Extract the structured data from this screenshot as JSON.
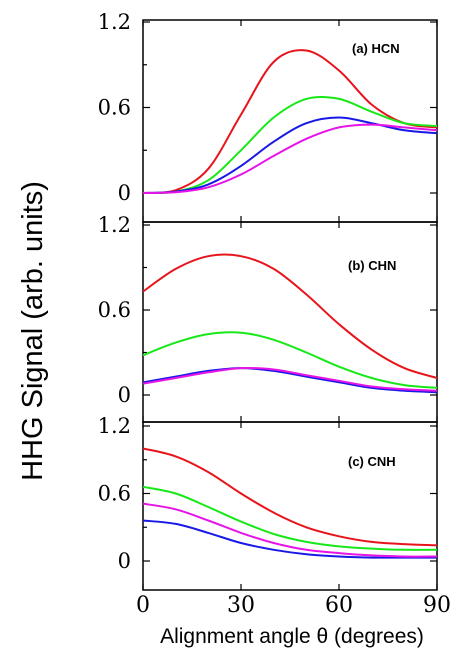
{
  "chart_data": {
    "type": "line",
    "ylabel": "HHG Signal (arb. units)",
    "xlabel": "Alignment angle θ (degrees)",
    "x_ticks": [
      "0",
      "30",
      "60",
      "90"
    ],
    "y_ticks": [
      "0",
      "0.6",
      "1.2"
    ],
    "xlim": [
      0,
      90
    ],
    "ylim": [
      0,
      1.2
    ],
    "colors": [
      "#e8141b",
      "#18e818",
      "#1919e6",
      "#e614e6"
    ],
    "panels": [
      {
        "label": "(a)  HCN",
        "x": [
          0,
          10,
          20,
          30,
          40,
          50,
          60,
          70,
          80,
          90
        ],
        "series": [
          {
            "color": "#e8141b",
            "values": [
              0,
              0.02,
              0.17,
              0.55,
              0.92,
              1.0,
              0.86,
              0.62,
              0.49,
              0.46
            ]
          },
          {
            "color": "#18e818",
            "values": [
              0,
              0.01,
              0.09,
              0.3,
              0.53,
              0.66,
              0.66,
              0.57,
              0.49,
              0.47
            ]
          },
          {
            "color": "#1919e6",
            "values": [
              0,
              0.01,
              0.06,
              0.19,
              0.36,
              0.49,
              0.53,
              0.49,
              0.44,
              0.42
            ]
          },
          {
            "color": "#e614e6",
            "values": [
              0,
              0.005,
              0.04,
              0.13,
              0.26,
              0.38,
              0.46,
              0.48,
              0.46,
              0.44
            ]
          }
        ]
      },
      {
        "label": "(b) CHN",
        "x": [
          0,
          10,
          20,
          30,
          40,
          50,
          60,
          70,
          80,
          90
        ],
        "series": [
          {
            "color": "#e8141b",
            "values": [
              0.73,
              0.89,
              0.98,
              0.98,
              0.89,
              0.71,
              0.5,
              0.32,
              0.19,
              0.12
            ]
          },
          {
            "color": "#18e818",
            "values": [
              0.28,
              0.37,
              0.43,
              0.44,
              0.39,
              0.3,
              0.2,
              0.12,
              0.07,
              0.05
            ]
          },
          {
            "color": "#1919e6",
            "values": [
              0.09,
              0.13,
              0.17,
              0.19,
              0.17,
              0.13,
              0.09,
              0.05,
              0.03,
              0.02
            ]
          },
          {
            "color": "#e614e6",
            "values": [
              0.08,
              0.12,
              0.16,
              0.19,
              0.18,
              0.14,
              0.1,
              0.06,
              0.04,
              0.03
            ]
          }
        ]
      },
      {
        "label": "(c) CNH",
        "x": [
          0,
          10,
          20,
          30,
          40,
          50,
          60,
          70,
          80,
          90
        ],
        "series": [
          {
            "color": "#e8141b",
            "values": [
              1.0,
              0.93,
              0.79,
              0.6,
              0.43,
              0.3,
              0.22,
              0.17,
              0.15,
              0.14
            ]
          },
          {
            "color": "#18e818",
            "values": [
              0.66,
              0.6,
              0.48,
              0.35,
              0.24,
              0.17,
              0.13,
              0.11,
              0.1,
              0.1
            ]
          },
          {
            "color": "#1919e6",
            "values": [
              0.36,
              0.33,
              0.25,
              0.16,
              0.1,
              0.06,
              0.04,
              0.03,
              0.03,
              0.03
            ]
          },
          {
            "color": "#e614e6",
            "values": [
              0.51,
              0.46,
              0.36,
              0.25,
              0.16,
              0.1,
              0.07,
              0.05,
              0.04,
              0.04
            ]
          }
        ]
      }
    ]
  }
}
